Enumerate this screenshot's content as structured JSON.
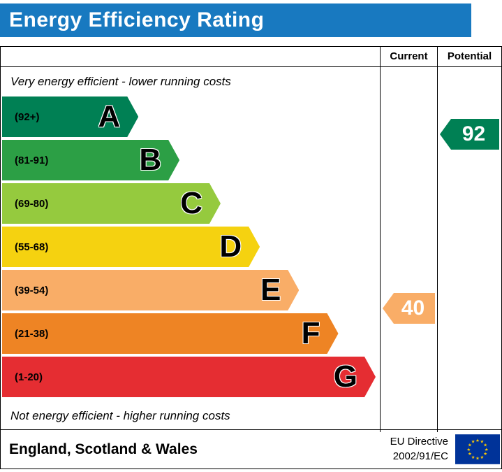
{
  "title_bar": {
    "title": "Energy Efficiency Rating",
    "bg_color": "#1879c0"
  },
  "table": {
    "columns": {
      "current": "Current",
      "potential": "Potential"
    },
    "top_note": "Very energy efficient - lower running costs",
    "bottom_note": "Not energy efficient - higher running costs"
  },
  "chart_data": {
    "type": "bar",
    "title": "Energy Efficiency Rating",
    "bands": [
      {
        "letter": "A",
        "range": "(92+)",
        "min": 92,
        "max": 100,
        "color": "#008054",
        "width_pct": 36.5
      },
      {
        "letter": "B",
        "range": "(81-91)",
        "min": 81,
        "max": 91,
        "color": "#2c9f45",
        "width_pct": 47.5
      },
      {
        "letter": "C",
        "range": "(69-80)",
        "min": 69,
        "max": 80,
        "color": "#95ca3e",
        "width_pct": 58.5
      },
      {
        "letter": "D",
        "range": "(55-68)",
        "min": 55,
        "max": 68,
        "color": "#f5d210",
        "width_pct": 69
      },
      {
        "letter": "E",
        "range": "(39-54)",
        "min": 39,
        "max": 54,
        "color": "#f9ad67",
        "width_pct": 79.5
      },
      {
        "letter": "F",
        "range": "(21-38)",
        "min": 21,
        "max": 38,
        "color": "#ee8424",
        "width_pct": 90
      },
      {
        "letter": "G",
        "range": "(1-20)",
        "min": 1,
        "max": 20,
        "color": "#e52d32",
        "width_pct": 100
      }
    ],
    "current": {
      "value": "40",
      "band": "E",
      "color": "#f9ad67"
    },
    "potential": {
      "value": "92",
      "band": "A",
      "color": "#008054"
    }
  },
  "footer": {
    "region": "England, Scotland & Wales",
    "directive_line1": "EU Directive",
    "directive_line2": "2002/91/EC",
    "eu_flag": {
      "bg": "#003399",
      "star_color": "#ffcc00"
    }
  }
}
